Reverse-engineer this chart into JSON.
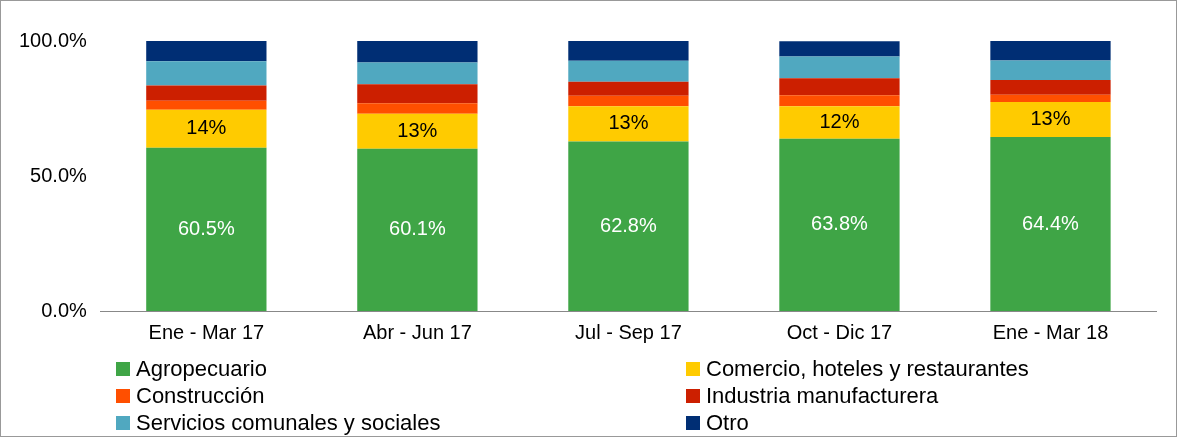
{
  "chart_data": {
    "type": "bar",
    "stacked": true,
    "categories": [
      "Ene - Mar 17",
      "Abr - Jun 17",
      "Jul - Sep 17",
      "Oct - Dic 17",
      "Ene - Mar 18"
    ],
    "series": [
      {
        "name": "Agropecuario",
        "color": "#3fa546",
        "values": [
          60.5,
          60.1,
          62.8,
          63.8,
          64.4
        ],
        "value_labels": [
          "60.5%",
          "60.1%",
          "62.8%",
          "63.8%",
          "64.4%"
        ]
      },
      {
        "name": "Comercio, hoteles y restaurantes",
        "color": "#ffcb00",
        "values": [
          14,
          13,
          13,
          12,
          13
        ],
        "value_labels": [
          "14%",
          "13%",
          "13%",
          "12%",
          "13%"
        ]
      },
      {
        "name": "Construcción",
        "color": "#ff4f00",
        "values": [
          3.4,
          3.8,
          3.9,
          4.1,
          2.7
        ]
      },
      {
        "name": "Industria manufacturera",
        "color": "#cc1f00",
        "values": [
          5.6,
          7.1,
          5.2,
          6.3,
          5.5
        ]
      },
      {
        "name": "Servicios comunales y sociales",
        "color": "#50a8c0",
        "values": [
          9.0,
          8.0,
          7.8,
          8.1,
          7.2
        ]
      },
      {
        "name": "Otro",
        "color": "#002e74",
        "values": [
          7.5,
          8.0,
          7.3,
          5.6,
          7.2
        ]
      }
    ],
    "ylim": [
      0,
      100
    ],
    "yticks": [
      {
        "value": 0,
        "label": "0.0%"
      },
      {
        "value": 50,
        "label": "50.0%"
      },
      {
        "value": 100,
        "label": "100.0%"
      }
    ],
    "grid": false,
    "legend": "bottom"
  }
}
